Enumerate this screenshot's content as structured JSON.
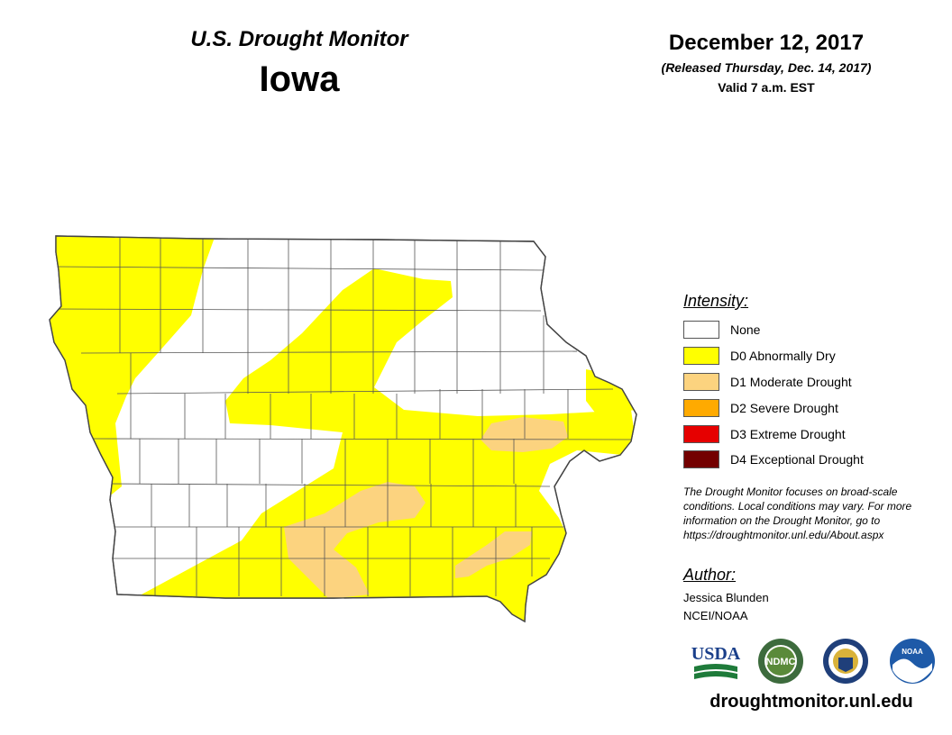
{
  "header": {
    "title": "U.S. Drought Monitor",
    "state": "Iowa",
    "date": "December 12, 2017",
    "released": "(Released Thursday, Dec. 14, 2017)",
    "valid": "Valid 7 a.m. EST"
  },
  "legend": {
    "title": "Intensity:",
    "items": [
      {
        "label": "None",
        "color": "#ffffff"
      },
      {
        "label": "D0 Abnormally Dry",
        "color": "#ffff00"
      },
      {
        "label": "D1 Moderate Drought",
        "color": "#fcd37f"
      },
      {
        "label": "D2 Severe Drought",
        "color": "#ffaa00"
      },
      {
        "label": "D3 Extreme Drought",
        "color": "#e60000"
      },
      {
        "label": "D4 Exceptional Drought",
        "color": "#730000"
      }
    ]
  },
  "note": "The Drought Monitor focuses on broad-scale conditions. Local conditions may vary. For more information on the Drought Monitor, go to https://droughtmonitor.unl.edu/About.aspx",
  "author": {
    "title": "Author:",
    "name": "Jessica Blunden",
    "org": "NCEI/NOAA"
  },
  "logos": [
    {
      "name": "usda-logo",
      "text": "USDA"
    },
    {
      "name": "ndmc-logo",
      "text": "NDMC"
    },
    {
      "name": "doc-seal-logo",
      "text": ""
    },
    {
      "name": "noaa-logo",
      "text": "NOAA"
    }
  ],
  "site": "droughtmonitor.unl.edu"
}
